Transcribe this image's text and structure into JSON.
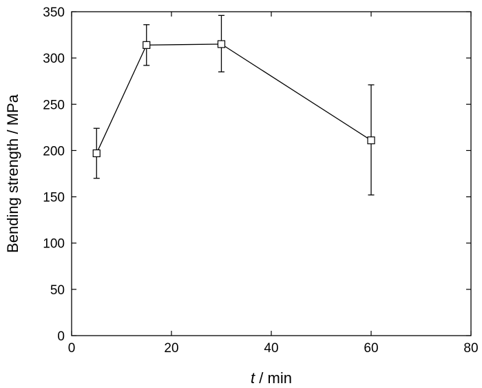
{
  "chart_data": {
    "type": "scatter",
    "title": "",
    "xlabel_var": "t",
    "xlabel_unit": " / min",
    "ylabel": "Bending strength / MPa",
    "xlim": [
      0,
      80
    ],
    "ylim": [
      0,
      350
    ],
    "xticks": [
      0,
      20,
      40,
      60,
      80
    ],
    "yticks": [
      0,
      50,
      100,
      150,
      200,
      250,
      300,
      350
    ],
    "grid": false,
    "marker": "open-square",
    "connect_points": true,
    "series": [
      {
        "x": [
          5,
          15,
          30,
          60
        ],
        "y": [
          197,
          314,
          315,
          211
        ],
        "err_low": [
          170,
          292,
          285,
          152
        ],
        "err_high": [
          224,
          336,
          346,
          271
        ]
      }
    ]
  }
}
